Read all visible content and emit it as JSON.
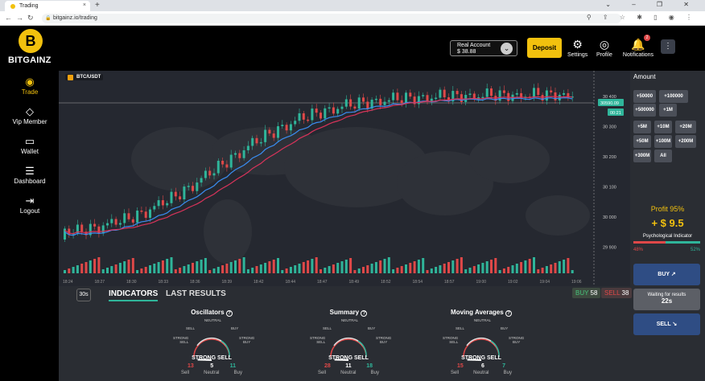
{
  "browser": {
    "tab_title": "Trading",
    "tab_close": "×",
    "new_tab": "+",
    "window_controls": "⌄ – ❐ ✕",
    "nav": {
      "back": "←",
      "forward": "→",
      "reload": "↻"
    },
    "url": "bitgainz.io/trading",
    "ext_icons": "⚲ ⇪ ☆ ✱ ▯ ◉ ⋮"
  },
  "app": {
    "logo_mark": "B",
    "logo_text": "BITGAINZ",
    "sidebar": [
      {
        "label": "Trade",
        "icon": "dollar-icon",
        "glyph": "◉",
        "active": true
      },
      {
        "label": "Vip Member",
        "icon": "diamond-icon",
        "glyph": "◇",
        "active": false
      },
      {
        "label": "Wallet",
        "icon": "wallet-icon",
        "glyph": "▭",
        "active": false
      },
      {
        "label": "Dashboard",
        "icon": "sliders-icon",
        "glyph": "☰",
        "active": false
      },
      {
        "label": "Logout",
        "icon": "logout-icon",
        "glyph": "⇥",
        "active": false
      }
    ],
    "header": {
      "account_type": "Real Account",
      "balance": "$ 38.88",
      "chevron": "⌄",
      "deposit": "Deposit",
      "settings": "Settings",
      "profile": "Profile",
      "notifications": "Notifications",
      "notification_count": "2",
      "settings_glyph": "⚙",
      "profile_glyph": "◎",
      "notify_glyph": "🔔",
      "more_glyph": "⋮"
    },
    "chart": {
      "pair": "BTC/USDT",
      "price_tag": "30590.09",
      "timer_tag": "00:21",
      "y_ticks": [
        "30 400",
        "30 300",
        "30 200",
        "30 100",
        "30 000",
        "29 900"
      ],
      "x_ticks": [
        "18:24",
        "18:27",
        "18:30",
        "18:33",
        "18:36",
        "18:39",
        "18:42",
        "18:44",
        "18:47",
        "18:49",
        "18:52",
        "18:54",
        "18:57",
        "19:00",
        "19:02",
        "19:04",
        "19:06"
      ]
    },
    "bottom": {
      "timeframe": "30s",
      "tab_indicators": "INDICATORS",
      "tab_results": "LAST RESULTS",
      "buy_label": "BUY",
      "buy_count": "58",
      "sell_label": "SELL",
      "sell_count": "38",
      "gauges": [
        {
          "title": "Oscillators",
          "verdict": "STRONG SELL",
          "sell": "13",
          "neutral": "5",
          "buy": "11",
          "needle_pos": 0.08
        },
        {
          "title": "Summary",
          "verdict": "STRONG SELL",
          "sell": "28",
          "neutral": "11",
          "buy": "18",
          "needle_pos": 0.08
        },
        {
          "title": "Moving Averages",
          "verdict": "STRONG SELL",
          "sell": "15",
          "neutral": "6",
          "buy": "7",
          "needle_pos": 0.08
        }
      ],
      "gauge_labels": {
        "strong_sell": "STRONG\nSELL",
        "sell": "SELL",
        "neutral": "NEUTRAL",
        "buy": "BUY",
        "strong_buy": "STRONG\nBUY"
      },
      "count_labels": {
        "sell": "Sell",
        "neutral": "Neutral",
        "buy": "Buy"
      },
      "help_glyph": "?"
    },
    "amount": {
      "title": "Amount",
      "buttons": [
        "+50000",
        "+100000",
        "+500000",
        "+1M",
        "+5M",
        "+10M",
        "+20M",
        "+50M",
        "+100M",
        "+200M",
        "+300M",
        "All"
      ],
      "profit": "Profit 95%",
      "payout": "+ $ 9.5",
      "psych_title": "Psychological Indicator",
      "psych_sell": "48%",
      "psych_buy": "52%",
      "psych_sell_fraction": 0.48,
      "buy_btn": "BUY ↗",
      "waiting": "Waiting for results",
      "waiting_time": "22s",
      "sell_btn": "SELL ↘"
    }
  }
}
